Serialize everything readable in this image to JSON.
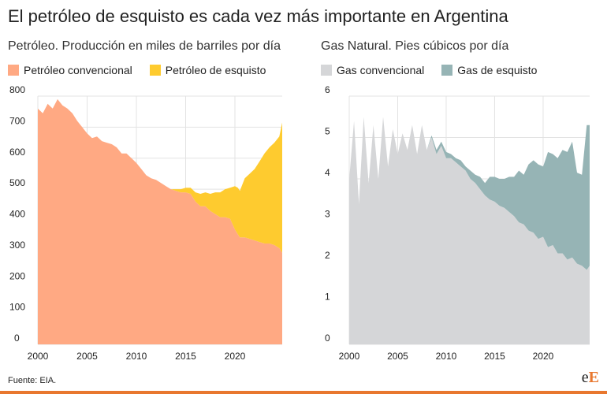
{
  "page": {
    "title": "El petróleo de esquisto es cada vez más importante en Argentina",
    "source": "Fuente: EIA.",
    "logo": {
      "small": "e",
      "big": "E"
    },
    "accent_color": "#e8772e"
  },
  "chart_data": [
    {
      "type": "area",
      "stacked": true,
      "title": "Petróleo. Producción en miles de barriles por día",
      "xlabel": "",
      "ylabel": "",
      "xlim": [
        2000,
        2024.8
      ],
      "ylim": [
        0,
        800
      ],
      "xticks": [
        2000,
        2005,
        2010,
        2015,
        2020
      ],
      "yticks": [
        0,
        100,
        200,
        300,
        400,
        500,
        600,
        700,
        800
      ],
      "grid": true,
      "legend": "top-left",
      "x": [
        2000,
        2000.5,
        2001,
        2001.5,
        2002,
        2002.5,
        2003,
        2003.5,
        2004,
        2004.5,
        2005,
        2005.5,
        2006,
        2006.5,
        2007,
        2007.5,
        2008,
        2008.5,
        2009,
        2009.5,
        2010,
        2010.5,
        2011,
        2011.5,
        2012,
        2012.5,
        2013,
        2013.5,
        2014,
        2014.5,
        2015,
        2015.5,
        2016,
        2016.5,
        2017,
        2017.5,
        2018,
        2018.5,
        2019,
        2019.5,
        2020,
        2020.3,
        2020.5,
        2021,
        2021.5,
        2022,
        2022.5,
        2023,
        2023.5,
        2024,
        2024.5,
        2024.8
      ],
      "series": [
        {
          "name": "Petróleo convencional",
          "color": "#ffa983",
          "values": [
            760,
            745,
            775,
            760,
            790,
            770,
            760,
            745,
            720,
            700,
            680,
            665,
            670,
            655,
            650,
            645,
            635,
            615,
            615,
            600,
            585,
            565,
            545,
            535,
            530,
            520,
            510,
            500,
            495,
            490,
            490,
            485,
            460,
            445,
            445,
            430,
            420,
            410,
            410,
            405,
            370,
            355,
            345,
            345,
            340,
            335,
            330,
            325,
            325,
            320,
            310,
            295
          ]
        },
        {
          "name": "Petróleo de esquisto",
          "color": "#fecb2f",
          "values": [
            0,
            0,
            0,
            0,
            0,
            0,
            0,
            0,
            0,
            0,
            0,
            0,
            0,
            0,
            0,
            0,
            0,
            0,
            0,
            0,
            0,
            0,
            0,
            0,
            0,
            0,
            0,
            0,
            5,
            10,
            15,
            20,
            30,
            40,
            45,
            55,
            70,
            80,
            90,
            100,
            140,
            150,
            150,
            190,
            210,
            230,
            260,
            290,
            310,
            330,
            360,
            420
          ]
        }
      ]
    },
    {
      "type": "area",
      "stacked": true,
      "title": "Gas Natural. Pies cúbicos por día",
      "xlabel": "",
      "ylabel": "",
      "xlim": [
        2000,
        2024.8
      ],
      "ylim": [
        0,
        6
      ],
      "xticks": [
        2000,
        2005,
        2010,
        2015,
        2020
      ],
      "yticks": [
        0,
        1,
        2,
        3,
        4,
        5,
        6
      ],
      "grid": true,
      "legend": "top-left",
      "x": [
        2000,
        2000.5,
        2001,
        2001.5,
        2002,
        2002.5,
        2003,
        2003.5,
        2004,
        2004.5,
        2005,
        2005.5,
        2006,
        2006.5,
        2007,
        2007.5,
        2008,
        2008.5,
        2009,
        2009.5,
        2010,
        2010.5,
        2011,
        2011.5,
        2012,
        2012.5,
        2013,
        2013.5,
        2014,
        2014.5,
        2015,
        2015.5,
        2016,
        2016.5,
        2017,
        2017.5,
        2018,
        2018.5,
        2019,
        2019.5,
        2020,
        2020.5,
        2021,
        2021.5,
        2022,
        2022.5,
        2023,
        2023.5,
        2024,
        2024.5,
        2024.8
      ],
      "series": [
        {
          "name": "Gas convencional",
          "color": "#d5d6d8",
          "values": [
            4.0,
            5.4,
            3.4,
            5.5,
            3.9,
            5.3,
            4.0,
            5.5,
            4.3,
            5.2,
            4.6,
            5.1,
            4.7,
            5.3,
            4.6,
            5.3,
            4.7,
            5.0,
            4.6,
            4.8,
            4.5,
            4.5,
            4.4,
            4.3,
            4.2,
            4.0,
            3.9,
            3.75,
            3.6,
            3.5,
            3.45,
            3.35,
            3.3,
            3.2,
            3.1,
            2.95,
            2.9,
            2.75,
            2.7,
            2.55,
            2.6,
            2.35,
            2.4,
            2.2,
            2.2,
            2.05,
            2.1,
            1.95,
            1.9,
            1.8,
            1.9
          ]
        },
        {
          "name": "Gas de esquisto",
          "color": "#96b4b5",
          "values": [
            0,
            0,
            0,
            0,
            0,
            0,
            0,
            0,
            0,
            0,
            0,
            0,
            0,
            0,
            0,
            0,
            0,
            0.05,
            0.1,
            0.1,
            0.15,
            0.1,
            0.1,
            0.15,
            0.1,
            0.2,
            0.2,
            0.3,
            0.3,
            0.55,
            0.6,
            0.65,
            0.7,
            0.85,
            0.95,
            1.25,
            1.2,
            1.6,
            1.75,
            1.8,
            1.7,
            2.3,
            2.2,
            2.3,
            2.5,
            2.6,
            2.8,
            2.2,
            2.2,
            3.5,
            3.4
          ]
        }
      ]
    }
  ]
}
